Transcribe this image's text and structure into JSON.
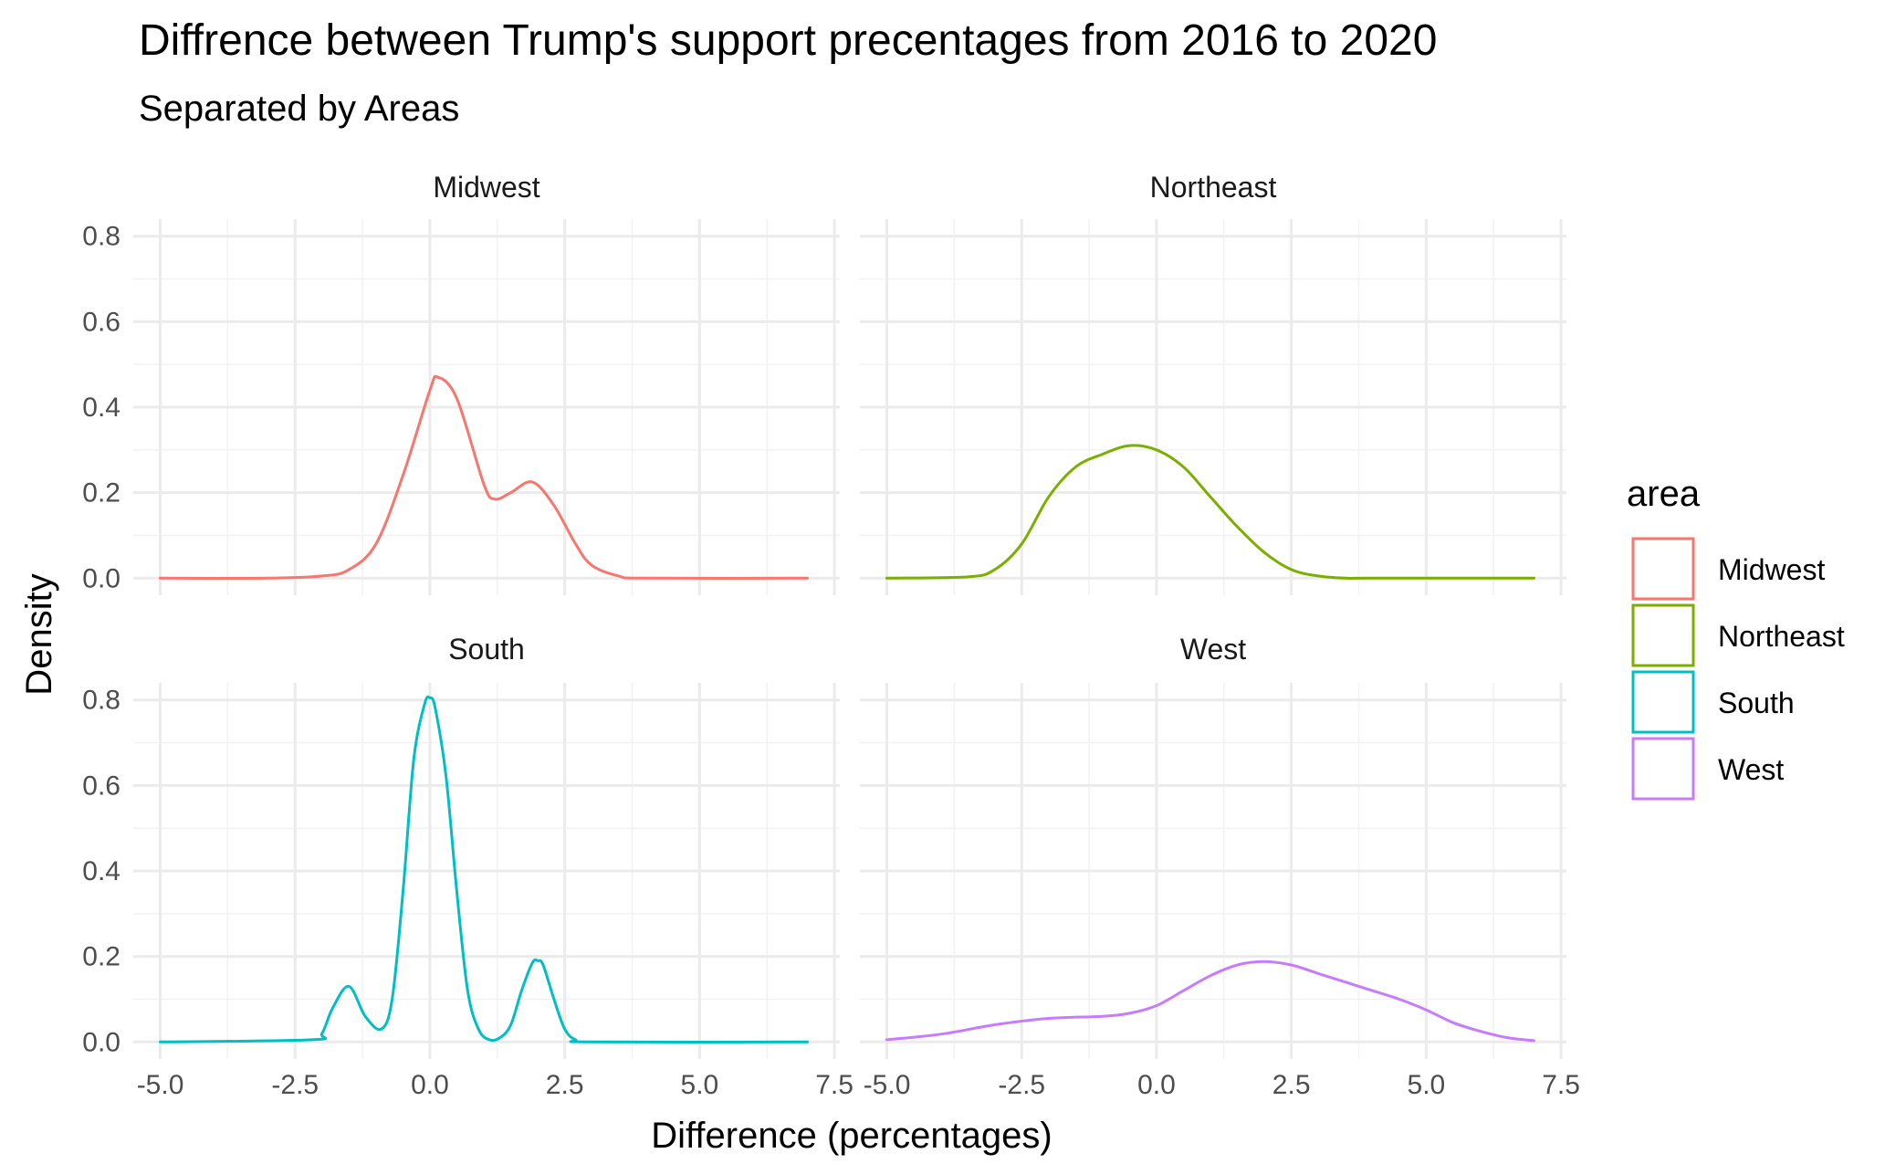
{
  "chart_data": {
    "type": "line",
    "title": "Diffrence between Trump's support precentages from 2016 to 2020",
    "subtitle": "Separated by Areas",
    "xlabel": "Difference (percentages)",
    "ylabel": "Density",
    "xlim": [
      -5.5,
      7.6
    ],
    "ylim": [
      -0.04,
      0.84
    ],
    "x_ticks": [
      -5.0,
      -2.5,
      0.0,
      2.5,
      5.0,
      7.5
    ],
    "x_tick_labels": [
      "-5.0",
      "-2.5",
      "0.0",
      "2.5",
      "5.0",
      "7.5"
    ],
    "y_ticks": [
      0.0,
      0.2,
      0.4,
      0.6,
      0.8
    ],
    "y_tick_labels": [
      "0.0",
      "0.2",
      "0.4",
      "0.6",
      "0.8"
    ],
    "grid": true,
    "legend": {
      "title": "area",
      "placement": "right",
      "entries": [
        "Midwest",
        "Northeast",
        "South",
        "West"
      ]
    },
    "facets": [
      {
        "name": "Midwest",
        "color": "#F8766D",
        "x": [
          -5.0,
          -3.0,
          -2.0,
          -1.5,
          -1.0,
          -0.5,
          0.0,
          0.15,
          0.5,
          1.0,
          1.2,
          1.5,
          1.9,
          2.3,
          2.7,
          3.0,
          3.5,
          4.0,
          7.0
        ],
        "y": [
          0.0,
          0.0,
          0.005,
          0.02,
          0.08,
          0.24,
          0.44,
          0.47,
          0.42,
          0.22,
          0.185,
          0.2,
          0.225,
          0.17,
          0.08,
          0.03,
          0.005,
          0.0,
          0.0
        ]
      },
      {
        "name": "Northeast",
        "color": "#7CAE00",
        "x": [
          -5.0,
          -3.5,
          -3.0,
          -2.5,
          -2.0,
          -1.5,
          -1.0,
          -0.5,
          0.0,
          0.5,
          1.0,
          1.5,
          2.0,
          2.5,
          3.0,
          3.5,
          4.0,
          7.0
        ],
        "y": [
          0.0,
          0.003,
          0.02,
          0.08,
          0.19,
          0.26,
          0.29,
          0.31,
          0.3,
          0.26,
          0.19,
          0.12,
          0.06,
          0.02,
          0.005,
          0.0,
          0.0,
          0.0
        ]
      },
      {
        "name": "South",
        "color": "#00BFC4",
        "x": [
          -5.0,
          -2.2,
          -2.0,
          -1.8,
          -1.5,
          -1.2,
          -0.9,
          -0.7,
          -0.5,
          -0.3,
          -0.1,
          0.0,
          0.1,
          0.3,
          0.5,
          0.7,
          0.9,
          1.1,
          1.3,
          1.5,
          1.7,
          1.9,
          2.0,
          2.1,
          2.3,
          2.5,
          2.7,
          3.0,
          7.0
        ],
        "y": [
          0.0,
          0.005,
          0.02,
          0.08,
          0.13,
          0.06,
          0.03,
          0.1,
          0.35,
          0.66,
          0.79,
          0.805,
          0.78,
          0.62,
          0.35,
          0.12,
          0.03,
          0.005,
          0.01,
          0.04,
          0.12,
          0.185,
          0.19,
          0.18,
          0.1,
          0.03,
          0.005,
          0.0,
          0.0
        ]
      },
      {
        "name": "West",
        "color": "#C77CFF",
        "x": [
          -5.0,
          -4.0,
          -3.0,
          -2.0,
          -1.0,
          -0.5,
          0.0,
          0.5,
          1.0,
          1.5,
          2.0,
          2.5,
          3.0,
          3.5,
          4.0,
          4.5,
          5.0,
          5.5,
          6.0,
          6.5,
          7.0
        ],
        "y": [
          0.005,
          0.018,
          0.04,
          0.055,
          0.06,
          0.067,
          0.085,
          0.12,
          0.155,
          0.18,
          0.188,
          0.18,
          0.16,
          0.14,
          0.12,
          0.1,
          0.075,
          0.045,
          0.025,
          0.01,
          0.003
        ]
      }
    ]
  }
}
